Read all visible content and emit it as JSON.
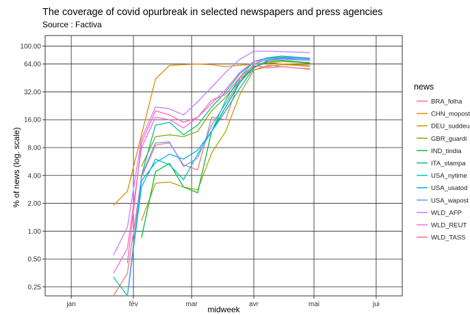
{
  "chart_data": {
    "type": "line",
    "title": "The coverage of covid opurbreak in selected newspapers and press agencies",
    "subtitle": "Source : Factiva",
    "xlabel": "midweek",
    "ylabel": "% of news (log. scale)",
    "y_scale": "log",
    "ylim": [
      0.2,
      130
    ],
    "y_ticks": [
      0.25,
      0.5,
      1,
      2,
      4,
      8,
      16,
      32,
      64,
      100
    ],
    "y_tick_labels": [
      "0.25",
      "0.50",
      "1.00",
      "2.00",
      "4.00",
      "8.00",
      "16.00",
      "32.00",
      "64.00",
      "100.00"
    ],
    "x_ticks": [
      "janv.",
      "févr.",
      "mars",
      "avr.",
      "mai",
      "juin"
    ],
    "x_tick_labels": [
      "jan",
      "fév",
      "mar",
      "avr",
      "mai",
      "jui"
    ],
    "grid": true,
    "legend_position": "right",
    "legend_title": "news",
    "x": [
      "2020-01-22",
      "2020-01-29",
      "2020-02-05",
      "2020-02-12",
      "2020-02-19",
      "2020-02-26",
      "2020-03-04",
      "2020-03-11",
      "2020-03-18",
      "2020-03-25",
      "2020-04-01",
      "2020-04-08",
      "2020-04-15",
      "2020-04-22",
      "2020-04-29"
    ],
    "series": [
      {
        "name": "BRA_folha",
        "color": "#F8766D",
        "values": [
          0.15,
          0.35,
          3.8,
          8.5,
          9.0,
          5.2,
          4.6,
          17,
          16,
          45,
          55,
          62,
          60,
          58,
          56
        ]
      },
      {
        "name": "CHN_mopost",
        "color": "#DE8C00",
        "values": [
          1.9,
          2.7,
          11,
          44,
          62,
          63,
          64,
          63,
          60,
          62,
          64,
          66,
          64,
          63,
          62
        ]
      },
      {
        "name": "DEU_suddeu",
        "color": "#B79F00",
        "values": [
          null,
          null,
          1.3,
          3.3,
          3.4,
          3.0,
          2.8,
          7.0,
          12,
          30,
          55,
          60,
          63,
          62,
          60
        ]
      },
      {
        "name": "GBR_guardi",
        "color": "#7CAE00",
        "values": [
          null,
          null,
          5.0,
          10.5,
          11,
          10.5,
          12,
          20,
          28,
          42,
          60,
          66,
          68,
          67,
          65
        ]
      },
      {
        "name": "IND_tindia",
        "color": "#00BA38",
        "values": [
          null,
          null,
          0.85,
          4.4,
          5.4,
          3.0,
          2.6,
          12,
          22,
          40,
          60,
          68,
          70,
          68,
          66
        ]
      },
      {
        "name": "ITA_stampa",
        "color": "#00C08B",
        "values": [
          null,
          null,
          4.0,
          14,
          15,
          11,
          14,
          22,
          32,
          50,
          68,
          74,
          76,
          75,
          73
        ]
      },
      {
        "name": "USA_nytime",
        "color": "#00BFC4",
        "values": [
          0.32,
          0.18,
          3.0,
          6.0,
          5.2,
          3.6,
          6.8,
          12,
          26,
          46,
          68,
          75,
          78,
          76,
          74
        ]
      },
      {
        "name": "USA_usatod",
        "color": "#00A9FF",
        "values": [
          null,
          0.15,
          3.5,
          5.5,
          6.8,
          6.0,
          7.5,
          12,
          20,
          35,
          58,
          70,
          74,
          72,
          70
        ]
      },
      {
        "name": "USA_wapost",
        "color": "#619CFF",
        "values": [
          null,
          0.2,
          4.0,
          9.0,
          9.2,
          5.0,
          6.2,
          14,
          24,
          42,
          64,
          72,
          75,
          74,
          72
        ]
      },
      {
        "name": "WLD_AFP",
        "color": "#C77CFF",
        "values": [
          0.55,
          1.1,
          10,
          22,
          21,
          18,
          25,
          36,
          52,
          72,
          88,
          88,
          87,
          86,
          85
        ]
      },
      {
        "name": "WLD_REUT",
        "color": "#F564E3",
        "values": [
          0.35,
          0.65,
          8.0,
          17,
          16,
          13,
          17,
          24,
          34,
          52,
          68,
          70,
          72,
          71,
          70
        ]
      },
      {
        "name": "WLD_TASS",
        "color": "#FF64B0",
        "values": [
          null,
          0.45,
          9.0,
          20,
          18,
          15,
          17,
          26,
          30,
          46,
          62,
          58,
          60,
          58,
          57
        ]
      }
    ]
  }
}
